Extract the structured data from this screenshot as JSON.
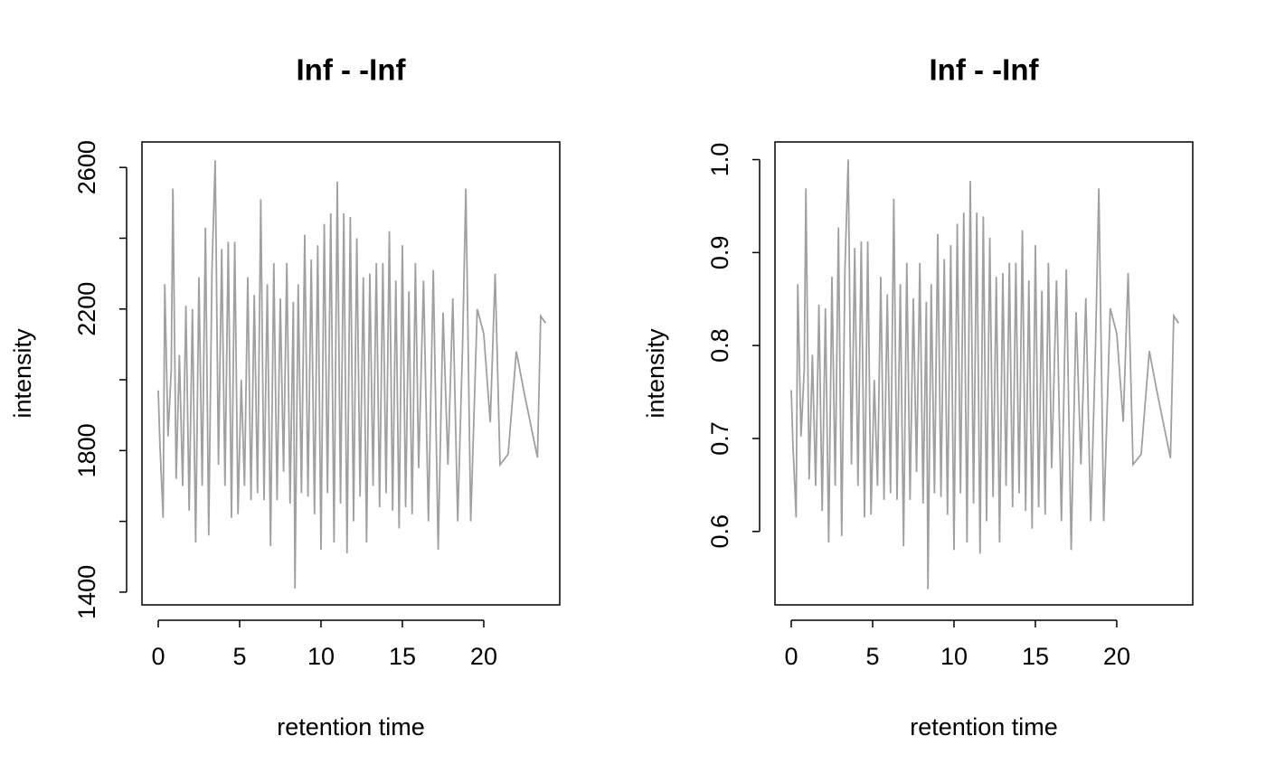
{
  "chart_data": [
    {
      "type": "line",
      "title": "Inf - -Inf",
      "xlabel": "retention time",
      "ylabel": "intensity",
      "xlim": [
        -1,
        24.67
      ],
      "ylim": [
        1364,
        2672
      ],
      "xticks": [
        0,
        5,
        10,
        15,
        20
      ],
      "yticks": [
        1400,
        {
          "value": 1600,
          "label": null
        },
        1800,
        {
          "value": 2000,
          "label": null
        },
        2200,
        {
          "value": 2400,
          "label": null
        },
        2600
      ],
      "x": [
        0,
        0.1,
        0.3,
        0.4,
        0.6,
        0.8,
        0.9,
        1.1,
        1.3,
        1.5,
        1.7,
        1.9,
        2.1,
        2.3,
        2.5,
        2.7,
        2.9,
        3.1,
        3.3,
        3.5,
        3.7,
        3.9,
        4.1,
        4.3,
        4.5,
        4.7,
        4.9,
        5.1,
        5.3,
        5.5,
        5.7,
        5.9,
        6.1,
        6.3,
        6.5,
        6.7,
        6.9,
        7.1,
        7.3,
        7.5,
        7.7,
        7.9,
        8.1,
        8.3,
        8.4,
        8.6,
        8.8,
        9.0,
        9.2,
        9.4,
        9.6,
        9.8,
        10.0,
        10.2,
        10.4,
        10.6,
        10.8,
        11.0,
        11.2,
        11.4,
        11.6,
        11.8,
        12.0,
        12.2,
        12.4,
        12.6,
        12.8,
        13.0,
        13.2,
        13.4,
        13.6,
        13.8,
        14.0,
        14.2,
        14.4,
        14.6,
        14.8,
        15.0,
        15.2,
        15.4,
        15.6,
        15.8,
        16.0,
        16.3,
        16.6,
        16.9,
        17.2,
        17.5,
        17.8,
        18.1,
        18.4,
        18.7,
        18.9,
        19.2,
        19.6,
        20.0,
        20.4,
        20.7,
        21.0,
        21.5,
        22.0,
        22.5,
        23.3,
        23.5,
        23.8
      ],
      "series": [
        {
          "color": "#a0a0a0",
          "values": [
            1970,
            1820,
            1610,
            2270,
            1840,
            2030,
            2540,
            1720,
            2070,
            1700,
            2210,
            1630,
            2200,
            1540,
            2290,
            1700,
            2430,
            1560,
            2310,
            2620,
            1760,
            2370,
            1700,
            2390,
            1610,
            2390,
            1620,
            2000,
            1700,
            2290,
            1660,
            2240,
            1680,
            2510,
            1660,
            2270,
            1530,
            2330,
            1660,
            2230,
            1740,
            2330,
            1650,
            2220,
            1410,
            2270,
            1680,
            2410,
            1670,
            2340,
            1620,
            2380,
            1520,
            2440,
            1680,
            2470,
            1540,
            2560,
            1650,
            2470,
            1510,
            2460,
            1600,
            2400,
            1670,
            2290,
            1540,
            2300,
            1700,
            2330,
            1640,
            2330,
            1680,
            2420,
            1630,
            2280,
            1580,
            2380,
            1640,
            2250,
            1620,
            2330,
            1750,
            2280,
            1600,
            2310,
            1520,
            2190,
            1760,
            2230,
            1600,
            2100,
            2540,
            1600,
            2200,
            2130,
            1880,
            2300,
            1760,
            1790,
            2080,
            1960,
            1780,
            2180,
            2160
          ]
        }
      ]
    },
    {
      "type": "line",
      "title": "Inf - -Inf",
      "xlabel": "retention time",
      "ylabel": "intensity",
      "xlim": [
        -1,
        24.67
      ],
      "ylim": [
        0.521,
        1.019
      ],
      "xticks": [
        0,
        5,
        10,
        15,
        20
      ],
      "yticks": [
        0.6,
        0.7,
        0.8,
        0.9,
        {
          "value": 1.0,
          "label": "1.0"
        }
      ],
      "x": [
        0,
        0.1,
        0.3,
        0.4,
        0.6,
        0.8,
        0.9,
        1.1,
        1.3,
        1.5,
        1.7,
        1.9,
        2.1,
        2.3,
        2.5,
        2.7,
        2.9,
        3.1,
        3.3,
        3.5,
        3.7,
        3.9,
        4.1,
        4.3,
        4.5,
        4.7,
        4.9,
        5.1,
        5.3,
        5.5,
        5.7,
        5.9,
        6.1,
        6.3,
        6.5,
        6.7,
        6.9,
        7.1,
        7.3,
        7.5,
        7.7,
        7.9,
        8.1,
        8.3,
        8.4,
        8.6,
        8.8,
        9.0,
        9.2,
        9.4,
        9.6,
        9.8,
        10.0,
        10.2,
        10.4,
        10.6,
        10.8,
        11.0,
        11.2,
        11.4,
        11.6,
        11.8,
        12.0,
        12.2,
        12.4,
        12.6,
        12.8,
        13.0,
        13.2,
        13.4,
        13.6,
        13.8,
        14.0,
        14.2,
        14.4,
        14.6,
        14.8,
        15.0,
        15.2,
        15.4,
        15.6,
        15.8,
        16.0,
        16.3,
        16.6,
        16.9,
        17.2,
        17.5,
        17.8,
        18.1,
        18.4,
        18.7,
        18.9,
        19.2,
        19.6,
        20.0,
        20.4,
        20.7,
        21.0,
        21.5,
        22.0,
        22.5,
        23.3,
        23.5,
        23.8
      ],
      "series": [
        {
          "color": "#a0a0a0",
          "values": [
            0.752,
            0.695,
            0.615,
            0.866,
            0.702,
            0.775,
            0.969,
            0.656,
            0.79,
            0.649,
            0.844,
            0.622,
            0.84,
            0.588,
            0.874,
            0.649,
            0.927,
            0.595,
            0.882,
            1.0,
            0.672,
            0.905,
            0.649,
            0.912,
            0.615,
            0.912,
            0.618,
            0.763,
            0.649,
            0.874,
            0.634,
            0.855,
            0.641,
            0.958,
            0.634,
            0.866,
            0.584,
            0.889,
            0.634,
            0.851,
            0.664,
            0.889,
            0.63,
            0.847,
            0.538,
            0.866,
            0.641,
            0.92,
            0.637,
            0.893,
            0.618,
            0.908,
            0.58,
            0.931,
            0.641,
            0.943,
            0.588,
            0.977,
            0.63,
            0.943,
            0.576,
            0.939,
            0.611,
            0.916,
            0.637,
            0.874,
            0.588,
            0.878,
            0.649,
            0.889,
            0.626,
            0.889,
            0.641,
            0.924,
            0.622,
            0.87,
            0.603,
            0.908,
            0.626,
            0.859,
            0.618,
            0.889,
            0.668,
            0.87,
            0.611,
            0.882,
            0.58,
            0.836,
            0.672,
            0.851,
            0.611,
            0.802,
            0.969,
            0.611,
            0.84,
            0.813,
            0.718,
            0.878,
            0.672,
            0.683,
            0.794,
            0.748,
            0.679,
            0.832,
            0.824
          ]
        }
      ]
    }
  ]
}
